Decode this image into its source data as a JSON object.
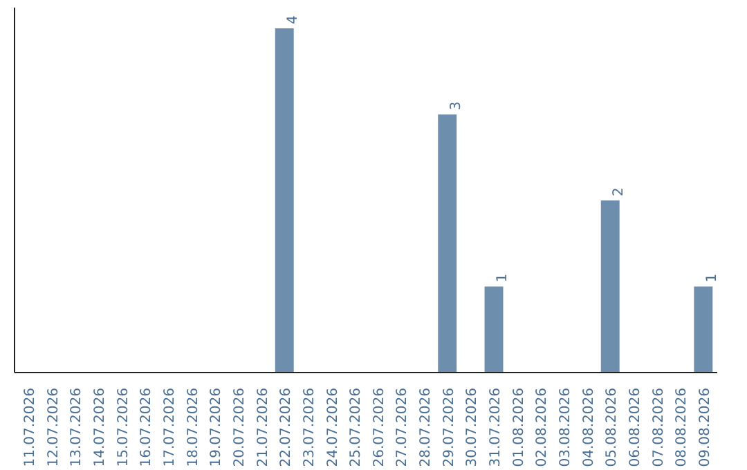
{
  "chart_data": {
    "type": "bar",
    "categories": [
      "11.07.2026",
      "12.07.2026",
      "13.07.2026",
      "14.07.2026",
      "15.07.2026",
      "16.07.2026",
      "17.07.2026",
      "18.07.2026",
      "19.07.2026",
      "20.07.2026",
      "21.07.2026",
      "22.07.2026",
      "23.07.2026",
      "24.07.2026",
      "25.07.2026",
      "26.07.2026",
      "27.07.2026",
      "28.07.2026",
      "29.07.2026",
      "30.07.2026",
      "31.07.2026",
      "01.08.2026",
      "02.08.2026",
      "03.08.2026",
      "04.08.2026",
      "05.08.2026",
      "06.08.2026",
      "07.08.2026",
      "08.08.2026",
      "09.08.2026"
    ],
    "values": [
      0,
      0,
      0,
      0,
      0,
      0,
      0,
      0,
      0,
      0,
      0,
      4,
      0,
      0,
      0,
      0,
      0,
      0,
      3,
      0,
      1,
      0,
      0,
      0,
      0,
      2,
      0,
      0,
      0,
      1
    ],
    "value_labels": [
      null,
      null,
      null,
      null,
      null,
      null,
      null,
      null,
      null,
      null,
      null,
      "4",
      null,
      null,
      null,
      null,
      null,
      null,
      "3",
      null,
      "1",
      null,
      null,
      null,
      null,
      "2",
      null,
      null,
      null,
      "1"
    ],
    "color": "#6d8fad",
    "tick_labels": "x",
    "grid": false
  }
}
